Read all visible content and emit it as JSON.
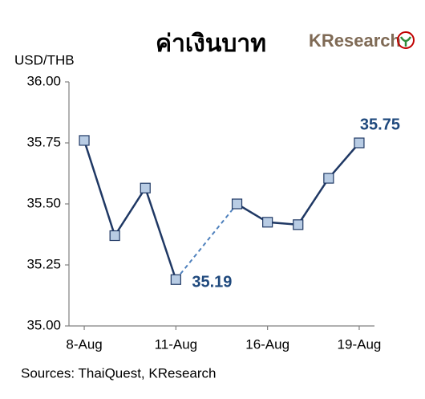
{
  "chart_data": {
    "type": "line",
    "title": "ค่าเงินบาท",
    "logo": "KResearch",
    "y_label": "USD/THB",
    "source": "Sources: ThaiQuest, KResearch",
    "categories": [
      "8-Aug",
      null,
      null,
      "11-Aug",
      null,
      null,
      "16-Aug",
      null,
      null,
      "19-Aug"
    ],
    "series": [
      {
        "name": "USD/THB",
        "color": "#1f3864",
        "marker_color": "#b8cce4",
        "values": [
          35.76,
          35.37,
          35.565,
          35.19,
          null,
          35.5,
          35.425,
          35.415,
          35.605,
          35.75
        ],
        "value_labels": [
          null,
          null,
          null,
          "35.19",
          null,
          null,
          null,
          null,
          null,
          "35.75"
        ]
      }
    ],
    "ylim": [
      35.0,
      36.0
    ],
    "yticks": [
      {
        "value": 35.0,
        "label": "35.00"
      },
      {
        "value": 35.25,
        "label": "35.25"
      },
      {
        "value": 35.5,
        "label": "35.50"
      },
      {
        "value": 35.75,
        "label": "35.75"
      },
      {
        "value": 36.0,
        "label": "36.00"
      }
    ],
    "grid": false
  }
}
